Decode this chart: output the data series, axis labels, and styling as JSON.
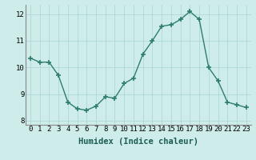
{
  "x": [
    0,
    1,
    2,
    3,
    4,
    5,
    6,
    7,
    8,
    9,
    10,
    11,
    12,
    13,
    14,
    15,
    16,
    17,
    18,
    19,
    20,
    21,
    22,
    23
  ],
  "y": [
    10.35,
    10.2,
    10.2,
    9.7,
    8.7,
    8.45,
    8.4,
    8.55,
    8.9,
    8.85,
    9.4,
    9.6,
    10.5,
    11.0,
    11.55,
    11.6,
    11.8,
    12.1,
    11.8,
    10.0,
    9.5,
    8.7,
    8.6,
    8.5
  ],
  "line_color": "#2e7d6e",
  "marker": "+",
  "markersize": 4,
  "markeredgewidth": 1.2,
  "linewidth": 1.0,
  "xlabel": "Humidex (Indice chaleur)",
  "xlim": [
    -0.5,
    23.5
  ],
  "ylim": [
    7.85,
    12.35
  ],
  "yticks": [
    8,
    9,
    10,
    11,
    12
  ],
  "xticks": [
    0,
    1,
    2,
    3,
    4,
    5,
    6,
    7,
    8,
    9,
    10,
    11,
    12,
    13,
    14,
    15,
    16,
    17,
    18,
    19,
    20,
    21,
    22,
    23
  ],
  "xtick_labels": [
    "0",
    "1",
    "2",
    "3",
    "4",
    "5",
    "6",
    "7",
    "8",
    "9",
    "10",
    "11",
    "12",
    "13",
    "14",
    "15",
    "16",
    "17",
    "18",
    "19",
    "20",
    "21",
    "22",
    "23"
  ],
  "bg_color": "#ceecea",
  "grid_color": "#aed8d4",
  "xlabel_fontsize": 7.5,
  "tick_fontsize": 6.5
}
